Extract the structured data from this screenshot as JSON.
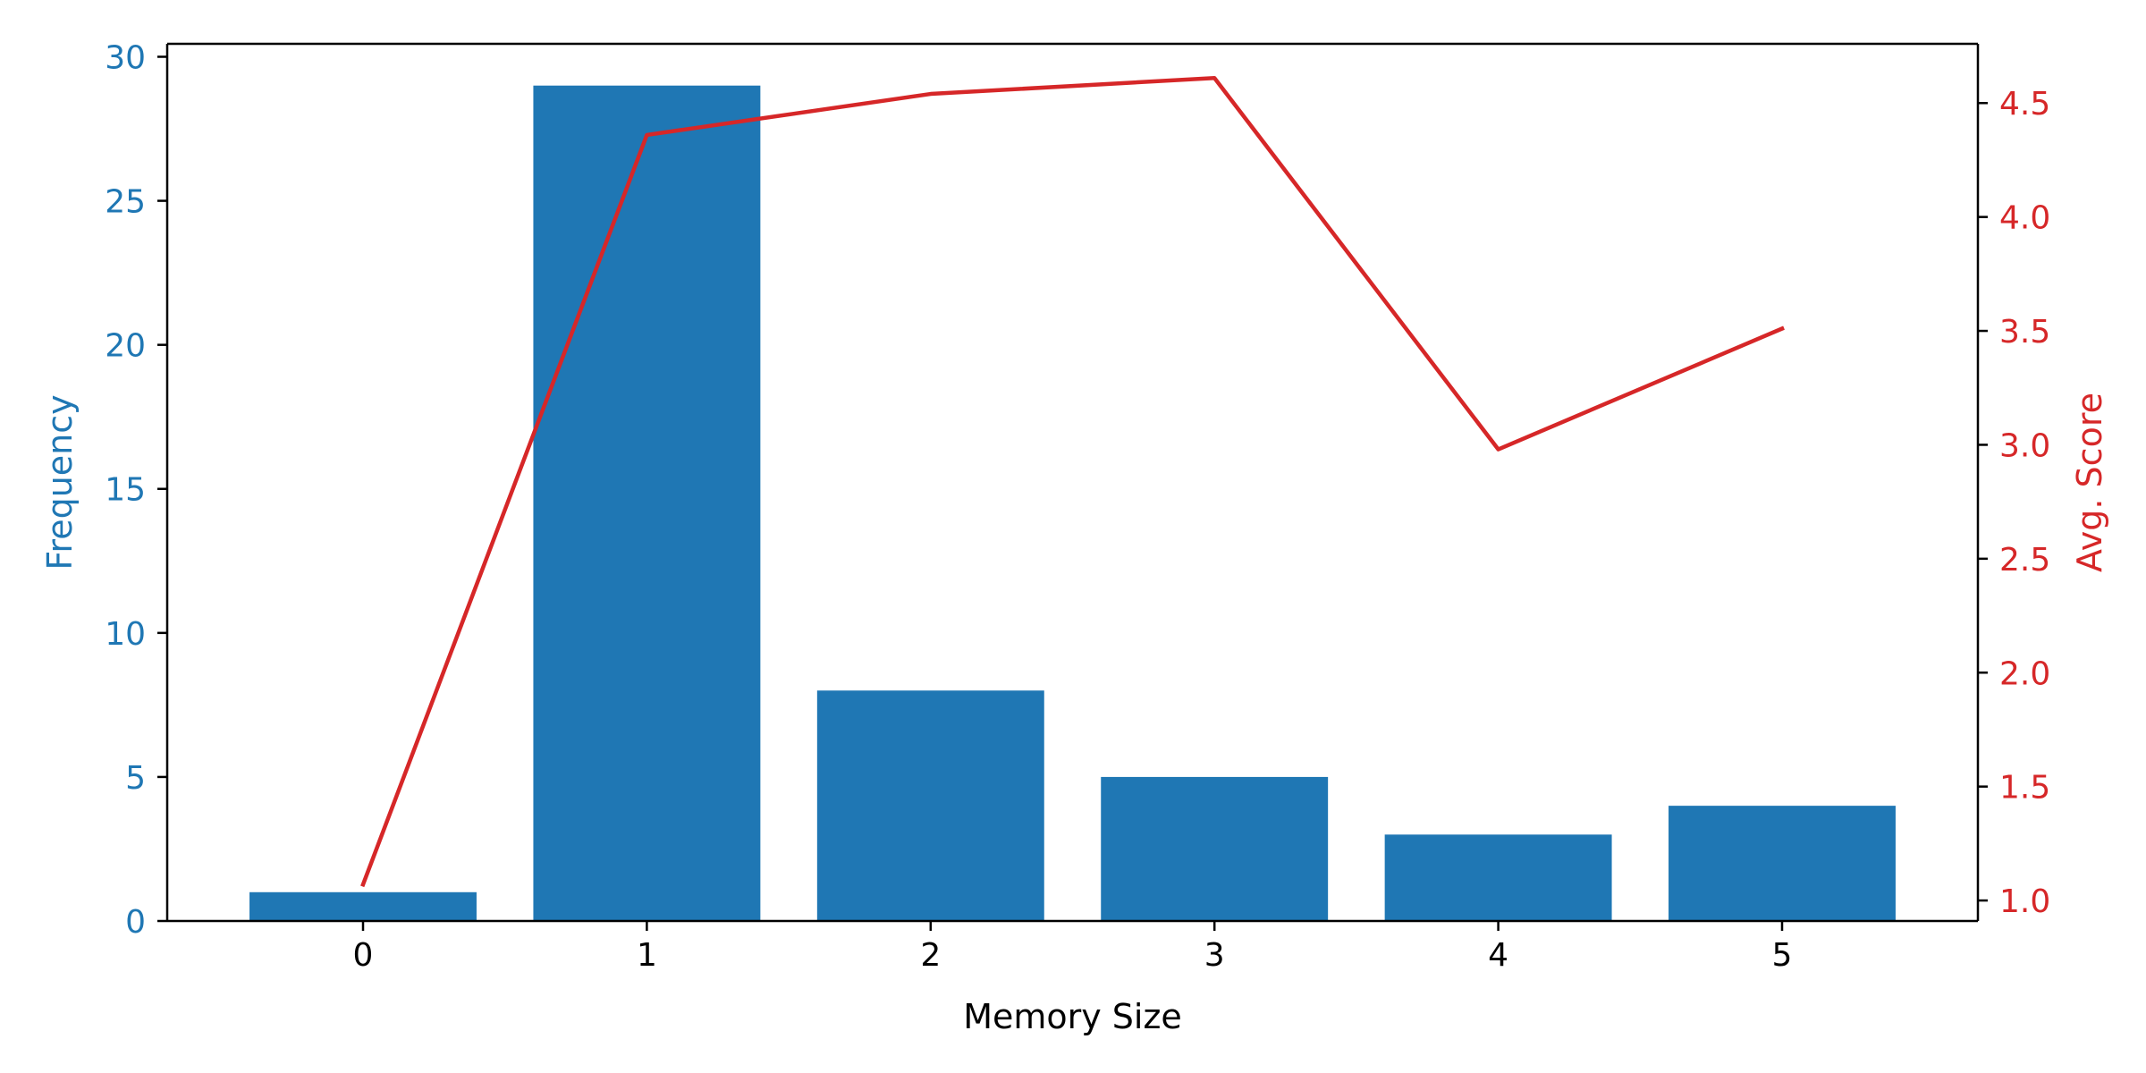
{
  "chart_data": {
    "type": "bar",
    "x": [
      0,
      1,
      2,
      3,
      4,
      5
    ],
    "xlabel": "Memory Size",
    "xlim": [
      -0.69,
      5.69
    ],
    "left_axis": {
      "label": "Frequency",
      "color": "#1f77b4",
      "ylim": [
        0,
        30.45
      ],
      "ticks": [
        0,
        5,
        10,
        15,
        20,
        25,
        30
      ]
    },
    "right_axis": {
      "label": "Avg. Score",
      "color": "#d62728",
      "ylim": [
        0.91,
        4.76
      ],
      "ticks": [
        "1.0",
        "1.5",
        "2.0",
        "2.5",
        "3.0",
        "3.5",
        "4.0",
        "4.5"
      ]
    },
    "series": [
      {
        "type": "bar",
        "axis": "left",
        "color": "#1f77b4",
        "values": [
          1,
          29,
          8,
          5,
          3,
          4
        ]
      },
      {
        "type": "line",
        "axis": "right",
        "color": "#d62728",
        "values": [
          1.07,
          4.36,
          4.54,
          4.61,
          2.98,
          3.51
        ]
      }
    ],
    "grid": false,
    "legend": "none"
  }
}
